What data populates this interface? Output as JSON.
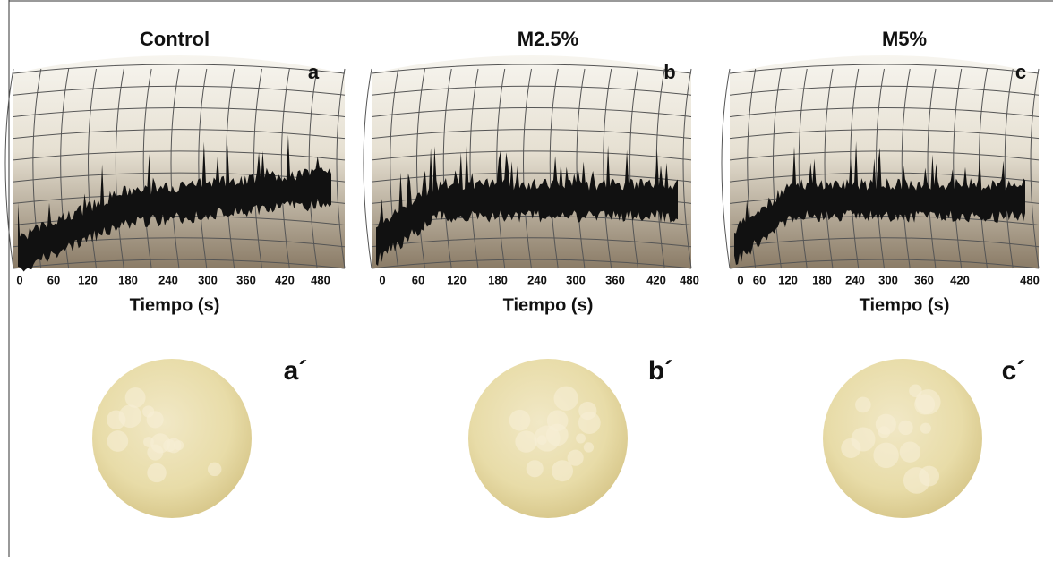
{
  "panels": [
    {
      "title": "Control",
      "letter": "a",
      "x_ticks": [
        "0",
        "60",
        "120",
        "180",
        "240",
        "300",
        "360",
        "420",
        "480"
      ],
      "x_label": "Tiempo (s)",
      "photo_label": "a´"
    },
    {
      "title": "M2.5%",
      "letter": "b",
      "x_ticks": [
        "0",
        "60",
        "120",
        "180",
        "240",
        "300",
        "360",
        "420",
        "480"
      ],
      "x_label": "Tiempo (s)",
      "photo_label": "b´"
    },
    {
      "title": "M5%",
      "letter": "c",
      "x_ticks": [
        "0",
        "60",
        "120",
        "180",
        "240",
        "300",
        "360",
        "420",
        "480"
      ],
      "x_label": "Tiempo (s)",
      "photo_label": "c´"
    }
  ]
}
